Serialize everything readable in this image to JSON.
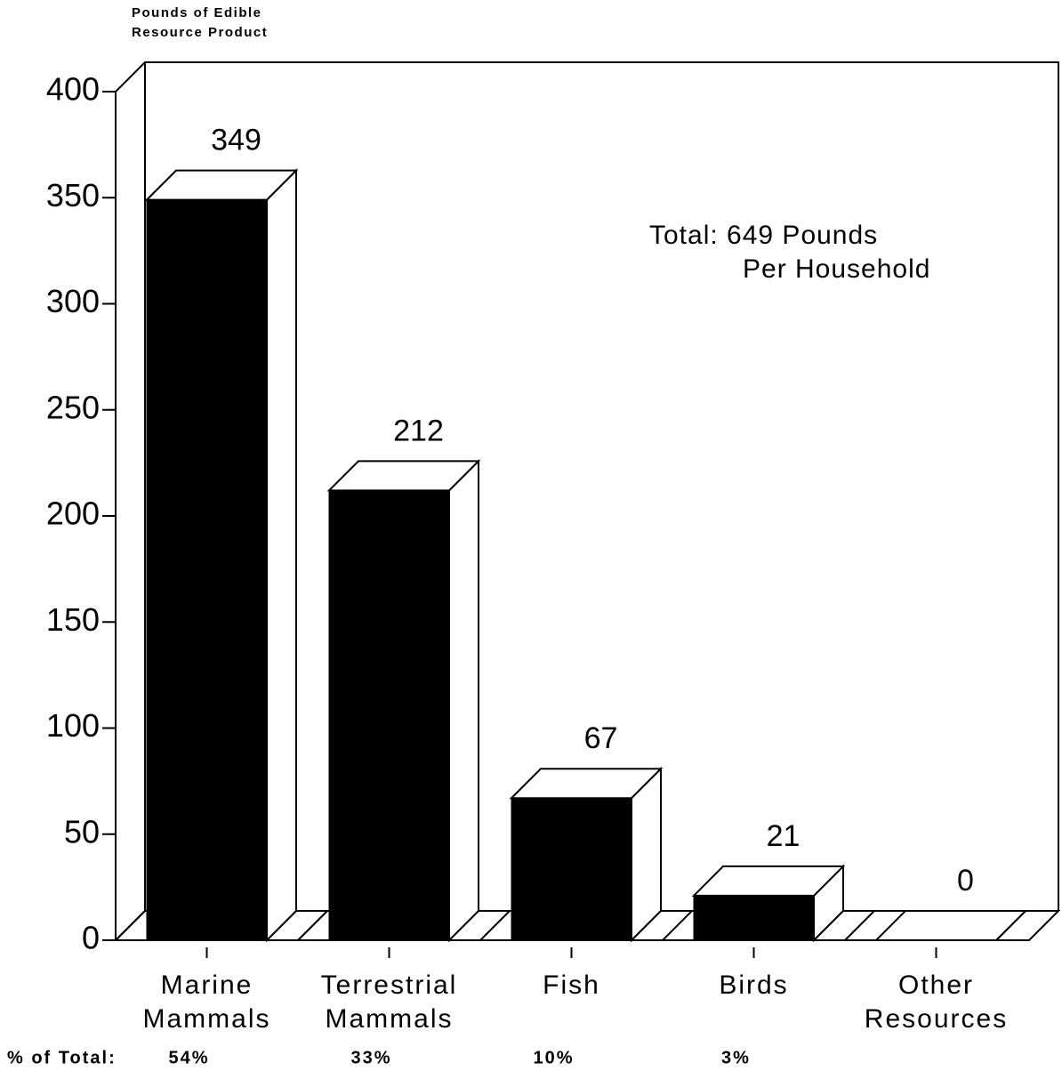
{
  "chart_data": {
    "type": "bar3d",
    "y_label": [
      "Pounds of Edible",
      "Resource Product"
    ],
    "categories": [
      [
        "Marine",
        "Mammals"
      ],
      [
        "Terrestrial",
        "Mammals"
      ],
      [
        "Fish"
      ],
      [
        "Birds"
      ],
      [
        "Other",
        "Resources"
      ]
    ],
    "values": [
      349,
      212,
      67,
      21,
      0
    ],
    "color": "#000000",
    "ylim": [
      0,
      400
    ],
    "yticks": [
      0,
      50,
      100,
      150,
      200,
      250,
      300,
      350,
      400
    ],
    "annotation": [
      "Total: 649 Pounds",
      "Per Household"
    ],
    "percent_title": "% of Total:",
    "percent_labels": [
      "54%",
      "33%",
      "10%",
      "3%",
      null
    ]
  }
}
